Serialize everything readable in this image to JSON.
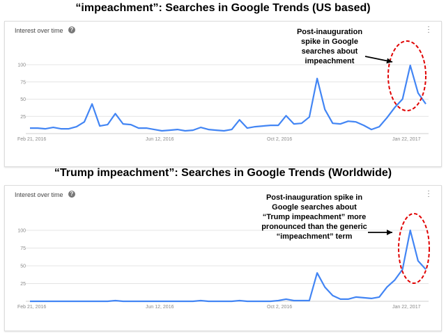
{
  "colors": {
    "line": "#4285f4",
    "grid": "#e4e4e4",
    "ellipse": "#e00000"
  },
  "chart_data": [
    {
      "type": "line",
      "title": "“impeachment”: Searches in Google Trends (US based)",
      "panel_title": "Interest over time",
      "x_tick_labels": [
        "Feb 21, 2016",
        "Jun 12, 2016",
        "Oct 2, 2016",
        "Jan 22, 2017"
      ],
      "y_ticks": [
        25,
        50,
        75,
        100
      ],
      "ylim": [
        0,
        100
      ],
      "annotation": [
        "Post-inauguration",
        "spike in Google",
        "searches about",
        "impeachment"
      ],
      "series": [
        {
          "values": [
            8,
            8,
            7,
            9,
            7,
            7,
            10,
            17,
            43,
            11,
            13,
            29,
            14,
            13,
            8,
            8,
            6,
            4,
            5,
            6,
            4,
            5,
            9,
            6,
            5,
            4,
            6,
            20,
            8,
            10,
            11,
            12,
            12,
            26,
            14,
            15,
            24,
            80,
            35,
            15,
            14,
            18,
            17,
            12,
            6,
            10,
            23,
            38,
            50,
            99,
            59,
            43
          ]
        }
      ]
    },
    {
      "type": "line",
      "title": "“Trump impeachment”: Searches in Google Trends (Worldwide)",
      "panel_title": "Interest over time",
      "x_tick_labels": [
        "Feb 21, 2016",
        "Jun 12, 2016",
        "Oct 2, 2016",
        "Jan 22, 2017"
      ],
      "y_ticks": [
        25,
        50,
        75,
        100
      ],
      "ylim": [
        0,
        100
      ],
      "annotation": [
        "Post-inauguration spike in",
        "Google searches about",
        "“Trump impeachment” more",
        "pronounced than the generic",
        "“impeachment” term"
      ],
      "series": [
        {
          "values": [
            0,
            0,
            0,
            0,
            0,
            0,
            0,
            0,
            0,
            0,
            0,
            1,
            0,
            0,
            0,
            0,
            0,
            0,
            0,
            0,
            0,
            0,
            1,
            0,
            0,
            0,
            0,
            1,
            0,
            0,
            0,
            0,
            1,
            3,
            1,
            1,
            1,
            40,
            20,
            8,
            3,
            3,
            6,
            5,
            4,
            6,
            20,
            30,
            45,
            100,
            57,
            45
          ]
        }
      ]
    }
  ]
}
